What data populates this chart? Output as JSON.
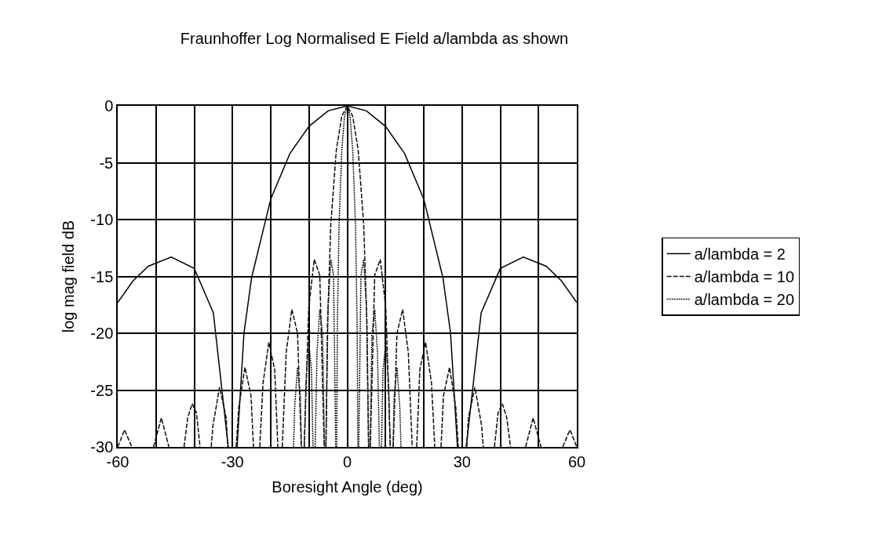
{
  "chart_data": {
    "type": "line",
    "title": "Fraunhoffer Log Normalised E Field a/lambda as shown",
    "xlabel": "Boresight Angle (deg)",
    "ylabel": "log mag field dB",
    "xlim": [
      -60,
      60
    ],
    "xticks": [
      -60,
      {
        "value": -50,
        "label": null
      },
      {
        "value": -40,
        "label": null
      },
      -30,
      {
        "value": -20,
        "label": null
      },
      {
        "value": -10,
        "label": null
      },
      0,
      {
        "value": 10,
        "label": null
      },
      {
        "value": 20,
        "label": null
      },
      30,
      {
        "value": 40,
        "label": null
      },
      {
        "value": 50,
        "label": null
      },
      60
    ],
    "ylim": [
      -30,
      0
    ],
    "yticks": [
      -30,
      -25,
      -20,
      -15,
      -10,
      -5,
      0
    ],
    "grid": true,
    "legend": "right",
    "marker": "none",
    "series": [
      {
        "name": "a/lambda = 2",
        "color": "#000000",
        "line_style": "solid",
        "x": [
          -60,
          -56,
          -52,
          -46,
          -40,
          -35,
          -31.1,
          -30,
          -28.8,
          -27,
          -25,
          -20,
          -15,
          -10,
          -5,
          0,
          5,
          10,
          15,
          20,
          25,
          27,
          28.8,
          30,
          31.1,
          35,
          40,
          46,
          52,
          56,
          60
        ],
        "values": [
          -17.3,
          -15.4,
          -14.1,
          -13.3,
          -14.3,
          -18.2,
          -30,
          null,
          -30,
          -20,
          -15.1,
          -8.2,
          -4.2,
          -1.8,
          -0.44,
          0,
          -0.44,
          -1.8,
          -4.2,
          -8.2,
          -15.1,
          -20,
          -30,
          null,
          -30,
          -18.2,
          -14.3,
          -13.3,
          -14.1,
          -15.4,
          -17.3
        ]
      },
      {
        "name": "a/lambda = 10",
        "color": "#0c0c0c",
        "line_style": "dashed",
        "x": [
          -60,
          -58.21,
          -56.31,
          -53.1,
          -50.64,
          -48.59,
          -46.62,
          -44.4,
          -42.67,
          -41.68,
          -40.54,
          -39.42,
          -38.48,
          -36.9,
          -35.56,
          -35.1,
          -33.37,
          -31.67,
          -31.23,
          -30,
          -29.03,
          -28.36,
          -26.74,
          -25.15,
          -24.51,
          -23.3,
          -22.87,
          -22.02,
          -20.49,
          -18.97,
          -18.14,
          -17.2,
          -16.98,
          -15.96,
          -14.48,
          -13.0,
          -12.0,
          -11.5,
          -11.26,
          -10.08,
          -8.63,
          -7.18,
          -6.02,
          -5.74,
          -5.56,
          -5.16,
          -4.3,
          -2.87,
          -1.43,
          0,
          1.43,
          2.87,
          4.3,
          5.16,
          5.56,
          5.74,
          6.02,
          7.18,
          8.63,
          10.08,
          11.26,
          11.5,
          12.0,
          13.0,
          14.48,
          15.96,
          16.98,
          17.2,
          18.14,
          18.97,
          20.49,
          22.02,
          22.87,
          23.3,
          24.51,
          25.15,
          26.74,
          28.36,
          29.03,
          30,
          31.23,
          31.67,
          33.37,
          35.1,
          35.56,
          36.9,
          38.48,
          39.42,
          40.54,
          41.68,
          42.67,
          44.4,
          46.62,
          48.59,
          50.64,
          53.1,
          56.31,
          58.21,
          60
        ],
        "values": [
          -30,
          -28.5,
          -30,
          null,
          -30,
          -27.45,
          -30,
          null,
          -30,
          -27.4,
          -26.2,
          -27.0,
          -30,
          null,
          -30,
          -28.1,
          -24.75,
          -27.4,
          -30,
          null,
          -30,
          -26.5,
          -23.0,
          -25.5,
          -30,
          null,
          -30,
          -24.4,
          -20.8,
          -23.2,
          -30,
          null,
          -30,
          -21.7,
          -17.9,
          -20.0,
          -30,
          null,
          -30,
          -17.8,
          -13.5,
          -14.9,
          -30,
          null,
          -30,
          -19.2,
          -10.45,
          -3.92,
          -0.91,
          0,
          -0.91,
          -3.92,
          -10.45,
          -19.2,
          -30,
          null,
          -30,
          -14.9,
          -13.5,
          -17.8,
          -30,
          null,
          -30,
          -20.0,
          -17.9,
          -21.7,
          -30,
          null,
          -30,
          -23.2,
          -20.8,
          -24.4,
          -30,
          null,
          -30,
          -25.5,
          -23.0,
          -26.5,
          -30,
          null,
          -30,
          -27.4,
          -24.75,
          -28.1,
          -30,
          null,
          -30,
          -27.0,
          -26.2,
          -27.4,
          -30,
          null,
          -30,
          -27.45,
          -30,
          null,
          -30,
          -28.5,
          -30
        ]
      },
      {
        "name": "a/lambda = 20",
        "color": "#181818",
        "line_style": "dotted",
        "x": [
          -14.04,
          -13.74,
          -13.0,
          -12.27,
          -11.97,
          -11.5,
          -11.21,
          -10.81,
          -10.08,
          -9.35,
          -8.95,
          -8.6,
          -8.39,
          -7.9,
          -7.18,
          -6.46,
          -5.97,
          -5.74,
          -5.6,
          -5.02,
          -4.3,
          -3.58,
          -3.0,
          -2.87,
          -2.78,
          -2.58,
          -2.15,
          -1.43,
          -0.72,
          0,
          0.72,
          1.43,
          2.15,
          2.58,
          2.78,
          2.87,
          3.0,
          3.58,
          4.3,
          5.02,
          5.6,
          5.74,
          5.97,
          6.46,
          7.18,
          7.9,
          8.39,
          8.6,
          8.95,
          9.35,
          10.08,
          10.81,
          11.21,
          11.5,
          11.97,
          12.27,
          13.0,
          13.74,
          14.04
        ],
        "values": [
          -30,
          -26.5,
          -23.0,
          -25.5,
          -30,
          null,
          -30,
          -24.4,
          -20.8,
          -23.2,
          -30,
          null,
          -30,
          -21.7,
          -17.9,
          -20.0,
          -30,
          null,
          -30,
          -17.8,
          -13.5,
          -14.9,
          -30,
          null,
          -30,
          -19.2,
          -10.45,
          -3.92,
          -0.91,
          0,
          -0.91,
          -3.92,
          -10.45,
          -19.2,
          -30,
          null,
          -30,
          -14.9,
          -13.5,
          -17.8,
          -30,
          null,
          -30,
          -20.0,
          -17.9,
          -21.7,
          -30,
          null,
          -30,
          -23.2,
          -20.8,
          -24.4,
          -30,
          null,
          -30,
          -25.5,
          -23.0,
          -26.5,
          -30
        ]
      }
    ]
  }
}
